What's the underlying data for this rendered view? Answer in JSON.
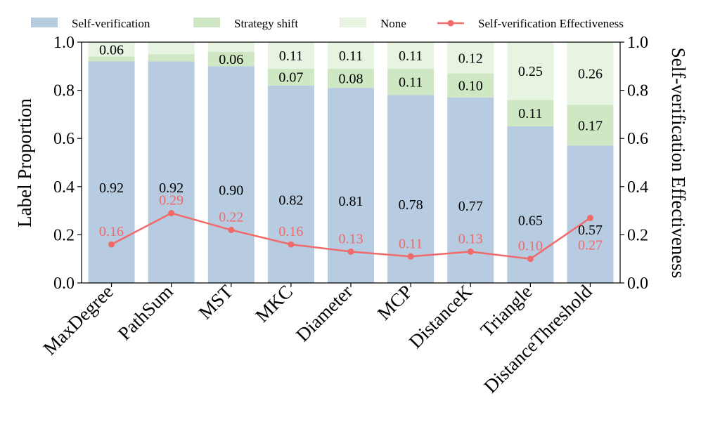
{
  "chart_data": {
    "type": "bar",
    "stacked": true,
    "categories": [
      "MaxDegree",
      "PathSum",
      "MST",
      "MKC",
      "Diameter",
      "MCP",
      "DistanceK",
      "Triangle",
      "DistanceThreshold"
    ],
    "series": [
      {
        "name": "Self-verification",
        "values": [
          0.92,
          0.92,
          0.9,
          0.82,
          0.81,
          0.78,
          0.77,
          0.65,
          0.57
        ],
        "labels": [
          "0.92",
          "0.92",
          "0.90",
          "0.82",
          "0.81",
          "0.78",
          "0.77",
          "0.65",
          "0.57"
        ]
      },
      {
        "name": "Strategy shift",
        "values": [
          0.02,
          0.03,
          0.06,
          0.07,
          0.08,
          0.11,
          0.1,
          0.11,
          0.17
        ],
        "labels": [
          "",
          "",
          "0.06",
          "0.07",
          "0.08",
          "0.11",
          "0.10",
          "0.11",
          "0.17"
        ]
      },
      {
        "name": "None",
        "values": [
          0.06,
          0.05,
          0.04,
          0.11,
          0.11,
          0.11,
          0.12,
          0.25,
          0.26
        ],
        "labels": [
          "0.06",
          "",
          "",
          "0.11",
          "0.11",
          "0.11",
          "0.12",
          "0.25",
          "0.26"
        ]
      }
    ],
    "line_series": {
      "name": "Self-verification Effectiveness",
      "values": [
        0.16,
        0.29,
        0.22,
        0.16,
        0.13,
        0.11,
        0.13,
        0.1,
        0.27
      ],
      "labels": [
        "0.16",
        "0.29",
        "0.22",
        "0.16",
        "0.13",
        "0.11",
        "0.13",
        "0.10",
        "0.27"
      ]
    },
    "ylabel": "Label Proportion",
    "y2label": "Self-verification Effectiveness",
    "ylim": [
      0.0,
      1.0
    ],
    "y2lim": [
      0.0,
      1.0
    ],
    "yticks": [
      "0.0",
      "0.2",
      "0.4",
      "0.6",
      "0.8",
      "1.0"
    ],
    "legend_position": "top",
    "colors": {
      "self_verification": "#b7cbe1",
      "strategy_shift": "#cfe7c2",
      "none": "#e8f4e2",
      "line": "#f06a6a"
    }
  }
}
